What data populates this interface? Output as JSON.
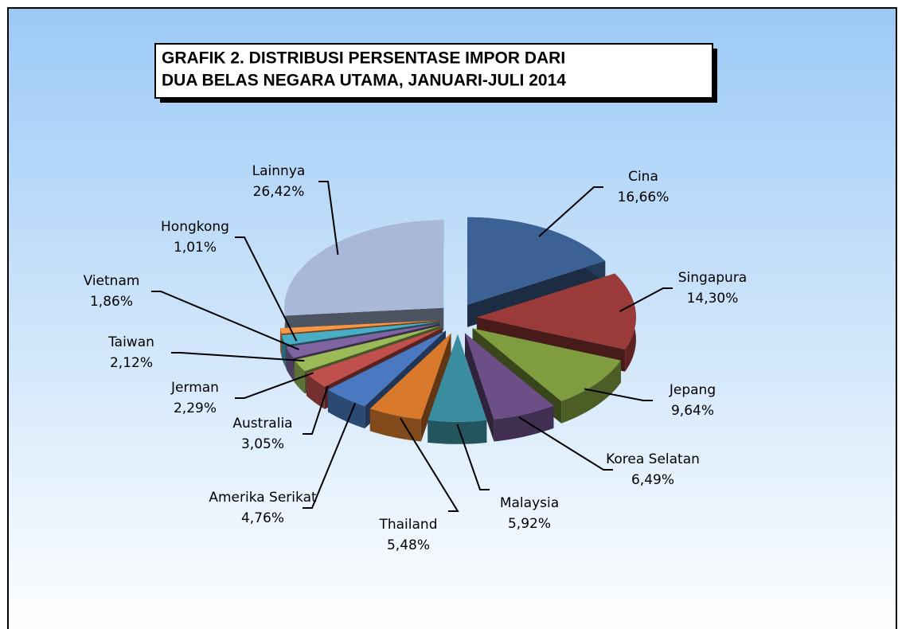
{
  "chart_data": {
    "type": "pie",
    "title": [
      "GRAFIK 2. DISTRIBUSI  PERSENTASE IMPOR DARI",
      "DUA BELAS NEGARA UTAMA, JANUARI-JULI 2014"
    ],
    "categories": [
      "Cina",
      "Singapura",
      "Jepang",
      "Korea Selatan",
      "Malaysia",
      "Thailand",
      "Amerika Serikat",
      "Australia",
      "Jerman",
      "Taiwan",
      "Vietnam",
      "Hongkong",
      "Lainnya"
    ],
    "values": [
      16.66,
      14.3,
      9.64,
      6.49,
      5.92,
      5.48,
      4.76,
      3.05,
      2.29,
      2.12,
      1.86,
      1.01,
      26.42
    ],
    "value_labels": [
      "16,66%",
      "14,30%",
      "9,64%",
      "6,49%",
      "5,92%",
      "5,48%",
      "4,76%",
      "3,05%",
      "2,29%",
      "2,12%",
      "1,86%",
      "1,01%",
      "26,42%"
    ],
    "colors": [
      "#3b6195",
      "#9b3b39",
      "#7f9c3f",
      "#6b4f86",
      "#3a8d9e",
      "#d9792b",
      "#4a79c1",
      "#c0504d",
      "#9bbb59",
      "#8064a2",
      "#4bacc6",
      "#f79646",
      "#a9b8d8"
    ]
  }
}
